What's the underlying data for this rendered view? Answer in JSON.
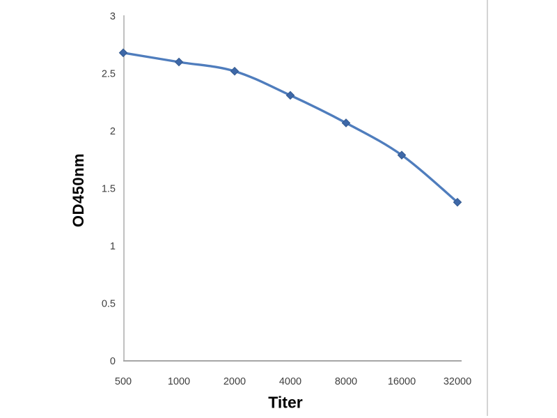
{
  "chart_data": {
    "type": "line",
    "title": "",
    "xlabel": "Titer",
    "ylabel": "OD450nm",
    "categories": [
      "500",
      "1000",
      "2000",
      "4000",
      "8000",
      "16000",
      "32000"
    ],
    "values": [
      2.68,
      2.6,
      2.52,
      2.31,
      2.07,
      1.79,
      1.38
    ],
    "ylim": [
      0,
      3
    ],
    "y_ticks": [
      0,
      0.5,
      1,
      1.5,
      2,
      2.5,
      3
    ],
    "y_tick_labels": [
      "0",
      "0.5",
      "1",
      "1.5",
      "2",
      "2.5",
      "3"
    ],
    "grid": false,
    "legend": "none",
    "smooth_line": true,
    "marker": "diamond",
    "colors": {
      "line": "#4F7DBD",
      "marker_fill": "#3E68A8",
      "marker_edge": "#33598F",
      "axis": "#A6A6A6",
      "frame_line": "#C9C9C9",
      "tick_label": "#3F3F3F",
      "axis_title": "#000000",
      "background": "#FFFFFF"
    }
  }
}
